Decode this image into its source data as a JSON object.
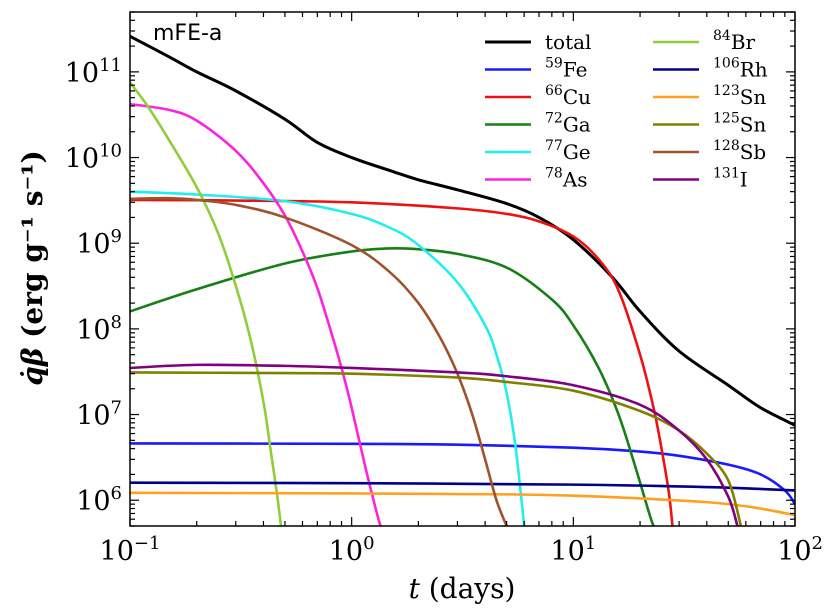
{
  "chart_data": {
    "type": "line",
    "panel_label": "mFE-a",
    "xlabel": {
      "var": "t",
      "unit": "(days)"
    },
    "ylabel": {
      "var": "q̇β",
      "unit": "(erg g⁻¹ s⁻¹)"
    },
    "x_scale": "log",
    "y_scale": "log",
    "xlim": [
      0.1,
      100
    ],
    "ylim": [
      500000,
      500000000000
    ],
    "x_ticks": [
      {
        "value": 0.1,
        "base": "10",
        "exp": "−1"
      },
      {
        "value": 1,
        "base": "10",
        "exp": "0"
      },
      {
        "value": 10,
        "base": "10",
        "exp": "1"
      },
      {
        "value": 100,
        "base": "10",
        "exp": "2"
      }
    ],
    "y_ticks": [
      {
        "value": 1000000,
        "base": "10",
        "exp": "6"
      },
      {
        "value": 10000000,
        "base": "10",
        "exp": "7"
      },
      {
        "value": 100000000,
        "base": "10",
        "exp": "8"
      },
      {
        "value": 1000000000,
        "base": "10",
        "exp": "9"
      },
      {
        "value": 10000000000,
        "base": "10",
        "exp": "10"
      },
      {
        "value": 100000000000,
        "base": "10",
        "exp": "11"
      }
    ],
    "grid": false,
    "legend_position": "top-right",
    "legend_columns": 2,
    "series": [
      {
        "name": "total",
        "mass": "",
        "element": "total",
        "color": "#000000",
        "points": [
          [
            0.1,
            260000000000.0
          ],
          [
            0.15,
            150000000000.0
          ],
          [
            0.2,
            100000000000.0
          ],
          [
            0.3,
            60000000000.0
          ],
          [
            0.5,
            28000000000.0
          ],
          [
            0.7,
            15000000000.0
          ],
          [
            1,
            10000000000.0
          ],
          [
            1.5,
            7000000000.0
          ],
          [
            2,
            5500000000.0
          ],
          [
            3,
            4200000000.0
          ],
          [
            5,
            2900000000.0
          ],
          [
            7,
            2000000000.0
          ],
          [
            10,
            1100000000.0
          ],
          [
            15,
            400000000.0
          ],
          [
            20,
            160000000.0
          ],
          [
            30,
            55000000.0
          ],
          [
            50,
            22000000.0
          ],
          [
            70,
            12000000.0
          ],
          [
            100,
            7500000.0
          ]
        ]
      },
      {
        "name": "59Fe",
        "mass": "59",
        "element": "Fe",
        "color": "#1a1aff",
        "points": [
          [
            0.1,
            4600000.0
          ],
          [
            1,
            4550000.0
          ],
          [
            3,
            4450000.0
          ],
          [
            10,
            4100000.0
          ],
          [
            20,
            3700000.0
          ],
          [
            30,
            3300000.0
          ],
          [
            50,
            2600000.0
          ],
          [
            70,
            2000000.0
          ],
          [
            90,
            1300000.0
          ],
          [
            100,
            900000.0
          ]
        ]
      },
      {
        "name": "66Cu",
        "mass": "66",
        "element": "Cu",
        "color": "#ee1111",
        "points": [
          [
            0.1,
            3200000000.0
          ],
          [
            0.3,
            3150000000.0
          ],
          [
            1,
            3000000000.0
          ],
          [
            3,
            2550000000.0
          ],
          [
            5,
            2200000000.0
          ],
          [
            7,
            1800000000.0
          ],
          [
            10,
            1200000000.0
          ],
          [
            13,
            650000000.0
          ],
          [
            16,
            280000000.0
          ],
          [
            20,
            50000000.0
          ],
          [
            23,
            12000000.0
          ],
          [
            25,
            4000000.0
          ],
          [
            27,
            1200000.0
          ],
          [
            28,
            500000.0
          ]
        ]
      },
      {
        "name": "72Ga",
        "mass": "72",
        "element": "Ga",
        "color": "#168016",
        "points": [
          [
            0.1,
            160000000.0
          ],
          [
            0.2,
            290000000.0
          ],
          [
            0.5,
            580000000.0
          ],
          [
            1,
            800000000.0
          ],
          [
            1.5,
            870000000.0
          ],
          [
            2,
            850000000.0
          ],
          [
            3,
            750000000.0
          ],
          [
            5,
            520000000.0
          ],
          [
            8,
            220000000.0
          ],
          [
            10,
            110000000.0
          ],
          [
            13,
            35000000.0
          ],
          [
            16,
            10000000.0
          ],
          [
            19,
            2500000.0
          ],
          [
            22,
            700000.0
          ],
          [
            23,
            500000.0
          ]
        ]
      },
      {
        "name": "77Ge",
        "mass": "77",
        "element": "Ge",
        "color": "#22eeee",
        "points": [
          [
            0.1,
            4000000000.0
          ],
          [
            0.2,
            3700000000.0
          ],
          [
            0.5,
            3100000000.0
          ],
          [
            1,
            2200000000.0
          ],
          [
            1.5,
            1500000000.0
          ],
          [
            2,
            950000000.0
          ],
          [
            3,
            350000000.0
          ],
          [
            4,
            110000000.0
          ],
          [
            4.5,
            50000000.0
          ],
          [
            5,
            18000000.0
          ],
          [
            5.5,
            4000000.0
          ],
          [
            6,
            500000.0
          ]
        ]
      },
      {
        "name": "78As",
        "mass": "78",
        "element": "As",
        "color": "#ff22dd",
        "points": [
          [
            0.1,
            42000000000.0
          ],
          [
            0.15,
            36000000000.0
          ],
          [
            0.2,
            27000000000.0
          ],
          [
            0.3,
            12000000000.0
          ],
          [
            0.4,
            5000000000.0
          ],
          [
            0.5,
            2100000000.0
          ],
          [
            0.6,
            800000000.0
          ],
          [
            0.7,
            300000000.0
          ],
          [
            0.8,
            100000000.0
          ],
          [
            0.9,
            35000000.0
          ],
          [
            1,
            12000000.0
          ],
          [
            1.15,
            2500000.0
          ],
          [
            1.3,
            700000.0
          ],
          [
            1.35,
            500000.0
          ]
        ]
      },
      {
        "name": "84Br",
        "mass": "84",
        "element": "Br",
        "color": "#8fce3a",
        "points": [
          [
            0.1,
            75000000000.0
          ],
          [
            0.12,
            40000000000.0
          ],
          [
            0.15,
            16000000000.0
          ],
          [
            0.2,
            4500000000.0
          ],
          [
            0.25,
            1300000000.0
          ],
          [
            0.3,
            320000000.0
          ],
          [
            0.35,
            75000000.0
          ],
          [
            0.4,
            14000000.0
          ],
          [
            0.43,
            4000000.0
          ],
          [
            0.46,
            1200000.0
          ],
          [
            0.48,
            500000.0
          ]
        ]
      },
      {
        "name": "106Rh",
        "mass": "106",
        "element": "Rh",
        "color": "#00008b",
        "points": [
          [
            0.1,
            1600000.0
          ],
          [
            1,
            1580000.0
          ],
          [
            10,
            1520000.0
          ],
          [
            30,
            1450000.0
          ],
          [
            50,
            1400000.0
          ],
          [
            100,
            1300000.0
          ]
        ]
      },
      {
        "name": "123Sn",
        "mass": "123",
        "element": "Sn",
        "color": "#ffa020",
        "points": [
          [
            0.1,
            1220000.0
          ],
          [
            1,
            1200000.0
          ],
          [
            5,
            1170000.0
          ],
          [
            10,
            1130000.0
          ],
          [
            20,
            1050000.0
          ],
          [
            40,
            950000.0
          ],
          [
            60,
            850000.0
          ],
          [
            80,
            750000.0
          ],
          [
            100,
            670000.0
          ]
        ]
      },
      {
        "name": "125Sn",
        "mass": "125",
        "element": "Sn",
        "color": "#808000",
        "points": [
          [
            0.1,
            31000000.0
          ],
          [
            0.5,
            30500000.0
          ],
          [
            1,
            30000000.0
          ],
          [
            3,
            27000000.0
          ],
          [
            5,
            24000000.0
          ],
          [
            10,
            19000000.0
          ],
          [
            20,
            11000000.0
          ],
          [
            30,
            6500000.0
          ],
          [
            40,
            3500000.0
          ],
          [
            50,
            1700000.0
          ],
          [
            57,
            500000.0
          ]
        ]
      },
      {
        "name": "128Sb",
        "mass": "128",
        "element": "Sb",
        "color": "#a0522d",
        "points": [
          [
            0.1,
            3300000000.0
          ],
          [
            0.15,
            3350000000.0
          ],
          [
            0.2,
            3200000000.0
          ],
          [
            0.3,
            2800000000.0
          ],
          [
            0.5,
            2000000000.0
          ],
          [
            1,
            950000000.0
          ],
          [
            1.5,
            450000000.0
          ],
          [
            2,
            200000000.0
          ],
          [
            2.5,
            80000000.0
          ],
          [
            3,
            30000000.0
          ],
          [
            3.5,
            10000000.0
          ],
          [
            4,
            3000000.0
          ],
          [
            4.5,
            1000000.0
          ],
          [
            5,
            500000.0
          ]
        ]
      },
      {
        "name": "131I",
        "mass": "131",
        "element": "I",
        "color": "#800080",
        "points": [
          [
            0.1,
            35000000.0
          ],
          [
            0.2,
            38000000.0
          ],
          [
            0.5,
            37000000.0
          ],
          [
            1,
            35000000.0
          ],
          [
            3,
            31000000.0
          ],
          [
            5,
            28000000.0
          ],
          [
            10,
            22000000.0
          ],
          [
            20,
            13000000.0
          ],
          [
            30,
            6500000.0
          ],
          [
            40,
            3000000.0
          ],
          [
            50,
            1100000.0
          ],
          [
            55,
            500000.0
          ]
        ]
      }
    ]
  }
}
